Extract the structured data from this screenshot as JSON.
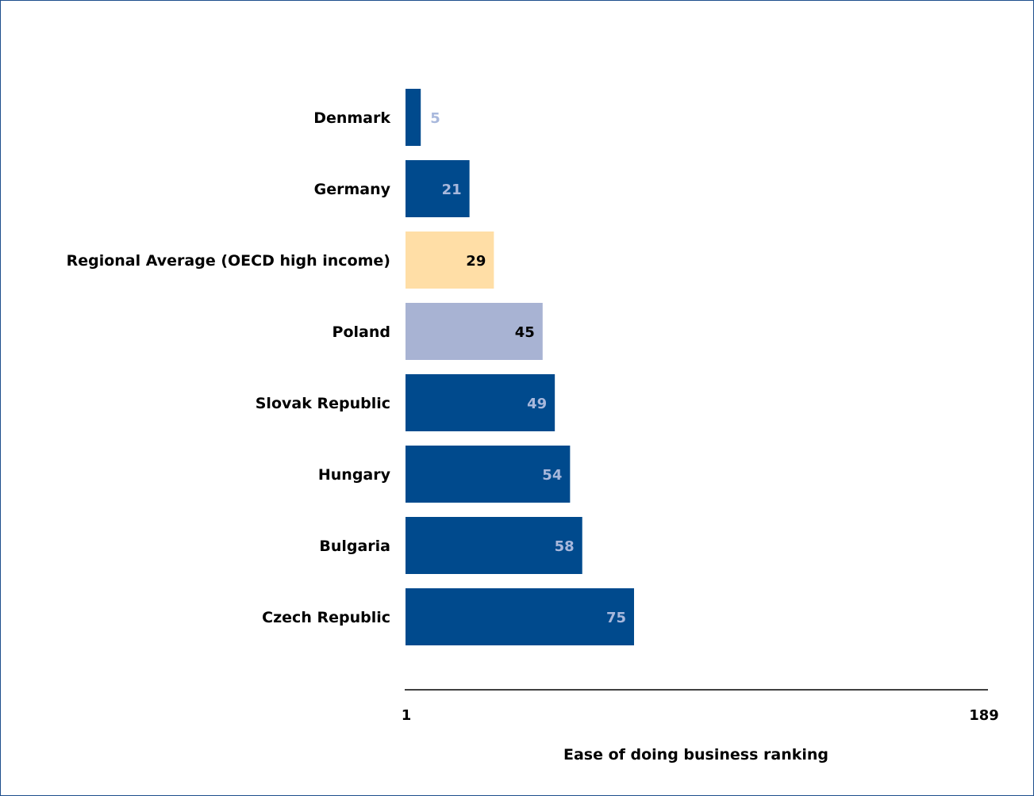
{
  "chart_data": {
    "type": "bar",
    "orientation": "horizontal",
    "categories": [
      "Denmark",
      "Germany",
      "Regional Average (OECD high income)",
      "Poland",
      "Slovak Republic",
      "Hungary",
      "Bulgaria",
      "Czech Republic"
    ],
    "values": [
      5,
      21,
      29,
      45,
      49,
      54,
      58,
      75
    ],
    "bar_colors": [
      "#004a8d",
      "#004a8d",
      "#ffdea6",
      "#a8b3d3",
      "#004a8d",
      "#004a8d",
      "#004a8d",
      "#004a8d"
    ],
    "label_colors": [
      "#a8b8dc",
      "#a8b8dc",
      "#000000",
      "#000000",
      "#a8b8dc",
      "#a8b8dc",
      "#a8b8dc",
      "#a8b8dc"
    ],
    "xlim": [
      1,
      189
    ],
    "x_ticks": [
      "1",
      "189"
    ],
    "xlabel": "Ease of doing business ranking",
    "ylabel": "",
    "title": "",
    "grid": false,
    "legend": "none"
  }
}
